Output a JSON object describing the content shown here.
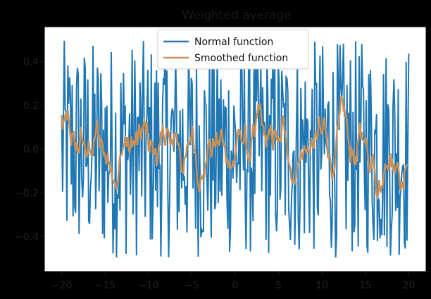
{
  "chart_data": {
    "type": "line",
    "title": "Weighted average",
    "xlabel": "",
    "ylabel": "",
    "xlim": [
      -22,
      22
    ],
    "ylim": [
      -0.56,
      0.56
    ],
    "x_ticks": [
      -20,
      -15,
      -10,
      -5,
      0,
      5,
      10,
      15,
      20
    ],
    "x_tick_labels": [
      "−20",
      "−15",
      "−10",
      "−5",
      "0",
      "5",
      "10",
      "15",
      "20"
    ],
    "y_ticks": [
      -0.4,
      -0.2,
      0.0,
      0.2,
      0.4
    ],
    "y_tick_labels": [
      "−0.4",
      "−0.2",
      "0.0",
      "0.2",
      "0.4"
    ],
    "grid": false,
    "legend_position": "top-center",
    "series": [
      {
        "name": "Normal function",
        "color": "#1f77b4",
        "x_start": -20,
        "x_end": 20,
        "points": 400,
        "value_range": [
          -0.5,
          0.5
        ]
      },
      {
        "name": "Smoothed function",
        "color": "#c8915a",
        "x_start": -20,
        "x_end": 20,
        "points": 400,
        "window": 5
      }
    ]
  }
}
